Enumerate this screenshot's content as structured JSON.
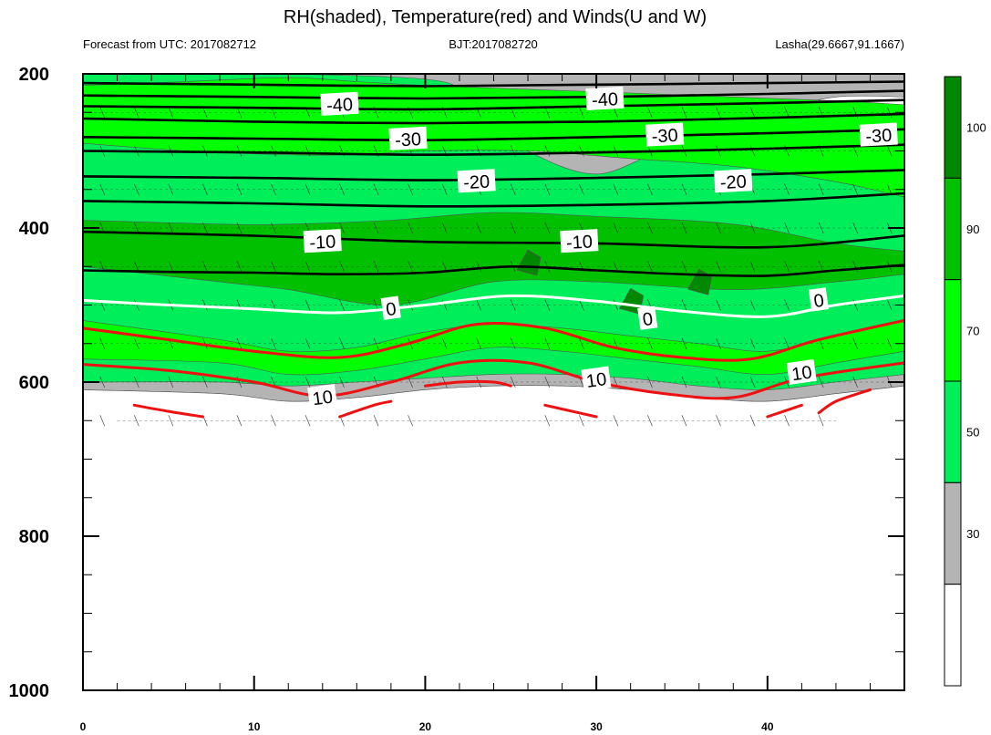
{
  "chart_data": {
    "type": "contour",
    "title": "RH(shaded), Temperature(red) and Winds(U and W)",
    "subtitle_left": "Forecast from UTC: 2017082712",
    "subtitle_center": "BJT:2017082720",
    "subtitle_right": "Lasha(29.6667,91.1667)",
    "x_ticks": [
      0,
      10,
      20,
      30,
      40
    ],
    "xlim": [
      0,
      48
    ],
    "y_ticks": [
      200,
      400,
      600,
      800,
      1000
    ],
    "ylim": [
      200,
      1000
    ],
    "y_inverted": true,
    "colorbar_labels": [
      30,
      50,
      70,
      90,
      100
    ],
    "rh_colors": {
      "lt30": "#ffffff",
      "30_50": "#b4b4b4",
      "50_70": "#00ee5a",
      "70_90": "#00ff00",
      "90_100": "#00c000",
      "gt100": "#008800"
    },
    "rh_bands": [
      {
        "class": "50_70",
        "x": [
          0,
          48
        ],
        "top": [
          200,
          200
        ],
        "bottom": [
          200,
          200
        ]
      },
      {
        "class": "30_50",
        "x": [
          12,
          21,
          23,
          26,
          30,
          34,
          38,
          44,
          48
        ],
        "top": [
          200,
          200,
          200,
          200,
          200,
          200,
          200,
          200,
          200
        ],
        "bottom": [
          200,
          210,
          250,
          300,
          330,
          300,
          300,
          330,
          360
        ]
      },
      {
        "class": "lt30",
        "x": [
          31,
          36,
          40,
          44,
          48
        ],
        "top": [
          270,
          270,
          250,
          230,
          230
        ],
        "bottom": [
          290,
          310,
          320,
          320,
          310
        ]
      },
      {
        "class": "70_90",
        "x": [
          0,
          6,
          12,
          16,
          20,
          26,
          32,
          38,
          44,
          48
        ],
        "top": [
          215,
          210,
          205,
          210,
          215,
          220,
          225,
          230,
          235,
          240
        ],
        "bottom": [
          290,
          300,
          305,
          305,
          300,
          300,
          310,
          320,
          340,
          360
        ]
      },
      {
        "class": "90_100",
        "x": [
          0,
          8,
          12,
          18,
          24,
          30,
          38,
          44,
          48
        ],
        "top": [
          390,
          395,
          395,
          390,
          380,
          385,
          395,
          420,
          430
        ],
        "bottom": [
          450,
          470,
          480,
          500,
          470,
          470,
          480,
          470,
          460
        ]
      },
      {
        "class": "70_90",
        "x": [
          0,
          8,
          12,
          16,
          20,
          24,
          28,
          32,
          36,
          40,
          44,
          48
        ],
        "top": [
          520,
          545,
          560,
          555,
          535,
          525,
          530,
          540,
          550,
          560,
          540,
          520
        ],
        "bottom": [
          570,
          575,
          590,
          585,
          570,
          555,
          560,
          570,
          580,
          590,
          575,
          560
        ]
      },
      {
        "class": "30_50",
        "x": [
          0,
          8,
          12,
          16,
          20,
          24,
          28,
          32,
          36,
          40,
          44,
          48
        ],
        "top": [
          600,
          600,
          605,
          600,
          595,
          590,
          590,
          595,
          605,
          610,
          600,
          590
        ],
        "bottom": [
          610,
          615,
          625,
          620,
          610,
          605,
          605,
          610,
          620,
          625,
          615,
          605
        ]
      }
    ],
    "rh_blobs": [
      {
        "class": "gt100",
        "x": 26,
        "y": 445
      },
      {
        "class": "gt100",
        "x": 32,
        "y": 495
      },
      {
        "class": "gt100",
        "x": 36,
        "y": 470
      }
    ],
    "temperature_contours": [
      {
        "value": -50,
        "color": "black",
        "x": [
          0,
          10,
          20,
          30,
          40,
          48
        ],
        "y": [
          212,
          214,
          216,
          214,
          212,
          210
        ]
      },
      {
        "value": -45,
        "color": "black",
        "x": [
          0,
          10,
          20,
          30,
          40,
          48
        ],
        "y": [
          228,
          230,
          232,
          230,
          226,
          222
        ]
      },
      {
        "value": -40,
        "color": "black",
        "x": [
          0,
          10,
          20,
          30,
          40,
          48
        ],
        "y": [
          242,
          244,
          246,
          242,
          238,
          234
        ]
      },
      {
        "value": -35,
        "color": "black",
        "x": [
          0,
          10,
          20,
          30,
          40,
          48
        ],
        "y": [
          258,
          262,
          264,
          262,
          257,
          252
        ]
      },
      {
        "value": -30,
        "color": "black",
        "x": [
          0,
          10,
          20,
          30,
          40,
          48
        ],
        "y": [
          282,
          284,
          286,
          282,
          277,
          272
        ]
      },
      {
        "value": -25,
        "color": "black",
        "x": [
          0,
          10,
          20,
          30,
          40,
          48
        ],
        "y": [
          300,
          302,
          305,
          302,
          297,
          292
        ]
      },
      {
        "value": -20,
        "color": "black",
        "x": [
          0,
          10,
          20,
          30,
          40,
          48
        ],
        "y": [
          333,
          335,
          338,
          335,
          330,
          325
        ]
      },
      {
        "value": -15,
        "color": "black",
        "x": [
          0,
          10,
          20,
          30,
          40,
          48
        ],
        "y": [
          365,
          368,
          372,
          370,
          365,
          355
        ]
      },
      {
        "value": -10,
        "color": "black",
        "x": [
          0,
          10,
          20,
          30,
          40,
          48
        ],
        "y": [
          405,
          410,
          418,
          420,
          425,
          410
        ]
      },
      {
        "value": -5,
        "color": "black",
        "x": [
          0,
          5,
          10,
          15,
          20,
          25,
          30,
          35,
          40,
          44,
          48
        ],
        "y": [
          455,
          457,
          458,
          460,
          458,
          450,
          455,
          460,
          462,
          455,
          448
        ]
      },
      {
        "value": 0,
        "color": "white",
        "x": [
          0,
          5,
          10,
          15,
          20,
          25,
          30,
          35,
          40,
          44,
          48
        ],
        "y": [
          494,
          500,
          505,
          510,
          500,
          488,
          495,
          508,
          515,
          500,
          488
        ]
      },
      {
        "value": 5,
        "color": "red",
        "x": [
          0,
          5,
          10,
          15,
          19,
          23,
          27,
          31,
          35,
          39,
          43,
          48
        ],
        "y": [
          530,
          545,
          560,
          568,
          550,
          525,
          530,
          555,
          568,
          570,
          545,
          520
        ]
      },
      {
        "value": 10,
        "color": "red",
        "x": [
          0,
          5,
          10,
          14,
          18,
          22,
          26,
          30,
          34,
          38,
          42,
          48
        ],
        "y": [
          577,
          585,
          600,
          618,
          600,
          575,
          575,
          600,
          615,
          620,
          595,
          575
        ]
      },
      {
        "value": 15,
        "color": "red",
        "x": [
          3,
          5,
          7
        ],
        "y": [
          630,
          638,
          645
        ]
      },
      {
        "value": 15,
        "color": "red",
        "x": [
          15,
          17,
          18
        ],
        "y": [
          645,
          630,
          625
        ]
      },
      {
        "value": 15,
        "color": "red",
        "x": [
          20,
          22,
          24,
          25
        ],
        "y": [
          605,
          600,
          600,
          605
        ]
      },
      {
        "value": 15,
        "color": "red",
        "x": [
          27,
          29,
          30
        ],
        "y": [
          630,
          640,
          645
        ]
      },
      {
        "value": 15,
        "color": "red",
        "x": [
          40,
          42
        ],
        "y": [
          645,
          630
        ]
      },
      {
        "value": 15,
        "color": "red",
        "x": [
          43,
          44,
          46
        ],
        "y": [
          640,
          625,
          610
        ]
      }
    ],
    "contour_labels": [
      {
        "text": "-40",
        "x": 15,
        "y": 240
      },
      {
        "text": "-40",
        "x": 30.5,
        "y": 233
      },
      {
        "text": "-30",
        "x": 19,
        "y": 285
      },
      {
        "text": "-30",
        "x": 34,
        "y": 280
      },
      {
        "text": "-30",
        "x": 46.5,
        "y": 280
      },
      {
        "text": "-20",
        "x": 23,
        "y": 340
      },
      {
        "text": "-20",
        "x": 38,
        "y": 340
      },
      {
        "text": "-10",
        "x": 14,
        "y": 418
      },
      {
        "text": "-10",
        "x": 29,
        "y": 418
      },
      {
        "text": "0",
        "x": 18,
        "y": 505
      },
      {
        "text": "0",
        "x": 33,
        "y": 518
      },
      {
        "text": "0",
        "x": 43,
        "y": 494
      },
      {
        "text": "10",
        "x": 14,
        "y": 620
      },
      {
        "text": "10",
        "x": 30,
        "y": 597
      },
      {
        "text": "10",
        "x": 42,
        "y": 588
      }
    ]
  }
}
